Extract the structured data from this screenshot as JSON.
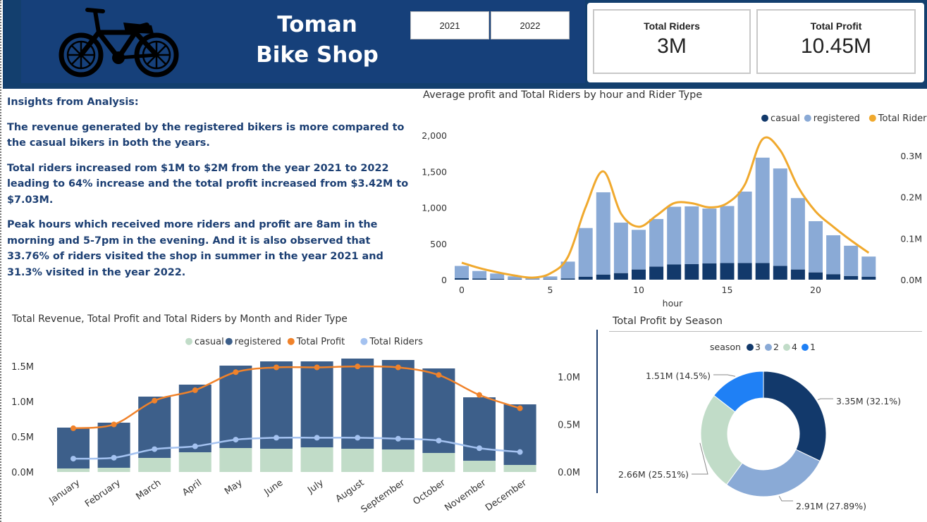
{
  "header": {
    "title_line1": "Toman",
    "title_line2": "Bike Shop",
    "year_buttons": [
      "2021",
      "2022"
    ],
    "kpis": [
      {
        "label": "Total Riders",
        "value": "3M"
      },
      {
        "label": "Total Profit",
        "value": "10.45M"
      }
    ]
  },
  "insights": {
    "heading": "Insights from Analysis:",
    "paragraphs": [
      "The revenue generated by the registered bikers is more compared to the casual bikers in both the years.",
      "Total riders increased rom $1M to $2M from the year 2021 to 2022 leading to 64% increase and the total profit increased from $3.42M to $7.03M.",
      "Peak hours which received more riders and profit are 8am in the morning and  5-7pm in the evening. And it is also observed that 33.76% of riders visited the shop in summer in the year 2021 and 31.3% visited in the year 2022."
    ]
  },
  "colors": {
    "header_bg": "#133f6e",
    "casual_hour": "#12396b",
    "registered_hour": "#8aaad6",
    "total_riders_hour": "#f0a92e",
    "casual_month": "#c1dcc8",
    "registered_month": "#3d5f8a",
    "profit_month": "#f0822a",
    "riders_month": "#a4c2f0",
    "season_3": "#12396b",
    "season_2": "#8aaad6",
    "season_4": "#c1dcc8",
    "season_1": "#1f80f5"
  },
  "chart_data": [
    {
      "type": "bar",
      "title": "Average profit and Total Riders by hour and Rider Type",
      "xlabel": "hour",
      "x": [
        0,
        1,
        2,
        3,
        4,
        5,
        6,
        7,
        8,
        9,
        10,
        11,
        12,
        13,
        14,
        15,
        16,
        17,
        18,
        19,
        20,
        21,
        22,
        23
      ],
      "x_ticks": [
        "0",
        "5",
        "10",
        "15",
        "20"
      ],
      "x_tick_values": [
        0,
        5,
        10,
        15,
        20
      ],
      "y_ticks": [
        "2,000",
        "1,500",
        "1,000",
        "500",
        "0"
      ],
      "y_tick_values": [
        2000,
        1500,
        1000,
        500,
        0
      ],
      "y2_ticks": [
        "0.3M",
        "0.2M",
        "0.1M",
        "0.0M"
      ],
      "y2_tick_values": [
        0.3,
        0.2,
        0.1,
        0.0
      ],
      "ylim": [
        0,
        2000
      ],
      "y2lim": [
        0,
        0.35
      ],
      "legend": [
        "casual",
        "registered",
        "Total Riders"
      ],
      "legend_position": "top-right",
      "stacked": true,
      "series": [
        {
          "name": "casual",
          "values": [
            20,
            15,
            10,
            6,
            3,
            5,
            15,
            40,
            70,
            90,
            140,
            180,
            210,
            215,
            225,
            230,
            230,
            230,
            190,
            140,
            100,
            75,
            50,
            40
          ]
        },
        {
          "name": "registered",
          "values": [
            170,
            105,
            75,
            40,
            20,
            40,
            235,
            675,
            1140,
            700,
            550,
            660,
            800,
            800,
            760,
            790,
            990,
            1460,
            1350,
            990,
            710,
            540,
            420,
            280
          ]
        },
        {
          "name": "Total Riders",
          "axis": "secondary",
          "values": [
            0.041,
            0.028,
            0.018,
            0.01,
            0.005,
            0.015,
            0.055,
            0.175,
            0.262,
            0.16,
            0.128,
            0.155,
            0.185,
            0.185,
            0.175,
            0.185,
            0.23,
            0.34,
            0.313,
            0.225,
            0.165,
            0.128,
            0.095,
            0.065
          ]
        }
      ]
    },
    {
      "type": "bar",
      "title": "Total Revenue, Total Profit and Total Riders by Month and Rider Type",
      "categories": [
        "January",
        "February",
        "March",
        "April",
        "May",
        "June",
        "July",
        "August",
        "September",
        "October",
        "November",
        "December"
      ],
      "y_ticks": [
        "1.5M",
        "1.0M",
        "0.5M",
        "0.0M"
      ],
      "y_tick_values": [
        1.5,
        1.0,
        0.5,
        0.0
      ],
      "y2_ticks": [
        "1.0M",
        "0.5M",
        "0.0M"
      ],
      "y2_tick_values": [
        1.0,
        0.5,
        0.0
      ],
      "ylim": [
        0,
        1.7
      ],
      "y2lim": [
        0,
        1.35
      ],
      "legend": [
        "casual",
        "registered",
        "Total Profit",
        "Total Riders"
      ],
      "legend_position": "top-right",
      "stacked": true,
      "series": [
        {
          "name": "casual",
          "values": [
            0.05,
            0.06,
            0.2,
            0.28,
            0.34,
            0.33,
            0.35,
            0.33,
            0.32,
            0.27,
            0.16,
            0.1
          ]
        },
        {
          "name": "registered",
          "values": [
            0.58,
            0.64,
            0.87,
            0.96,
            1.17,
            1.24,
            1.22,
            1.28,
            1.27,
            1.2,
            0.9,
            0.86
          ]
        },
        {
          "name": "Total Profit",
          "axis": "secondary",
          "values": [
            0.46,
            0.5,
            0.75,
            0.86,
            1.05,
            1.1,
            1.1,
            1.11,
            1.1,
            1.02,
            0.81,
            0.67
          ]
        },
        {
          "name": "Total Riders",
          "axis": "secondary",
          "values": [
            0.14,
            0.15,
            0.24,
            0.27,
            0.34,
            0.36,
            0.36,
            0.36,
            0.35,
            0.33,
            0.25,
            0.21
          ]
        }
      ]
    },
    {
      "type": "pie",
      "title": "Total Profit by Season",
      "legend_title": "season",
      "legend": [
        "3",
        "2",
        "4",
        "1"
      ],
      "legend_position": "top",
      "donut": true,
      "slices": [
        {
          "name": "3",
          "value": 3.35,
          "label": "3.35M (32.1%)"
        },
        {
          "name": "2",
          "value": 2.91,
          "label": "2.91M (27.89%)"
        },
        {
          "name": "4",
          "value": 2.66,
          "label": "2.66M (25.51%)"
        },
        {
          "name": "1",
          "value": 1.51,
          "label": "1.51M (14.5%)"
        }
      ]
    }
  ]
}
